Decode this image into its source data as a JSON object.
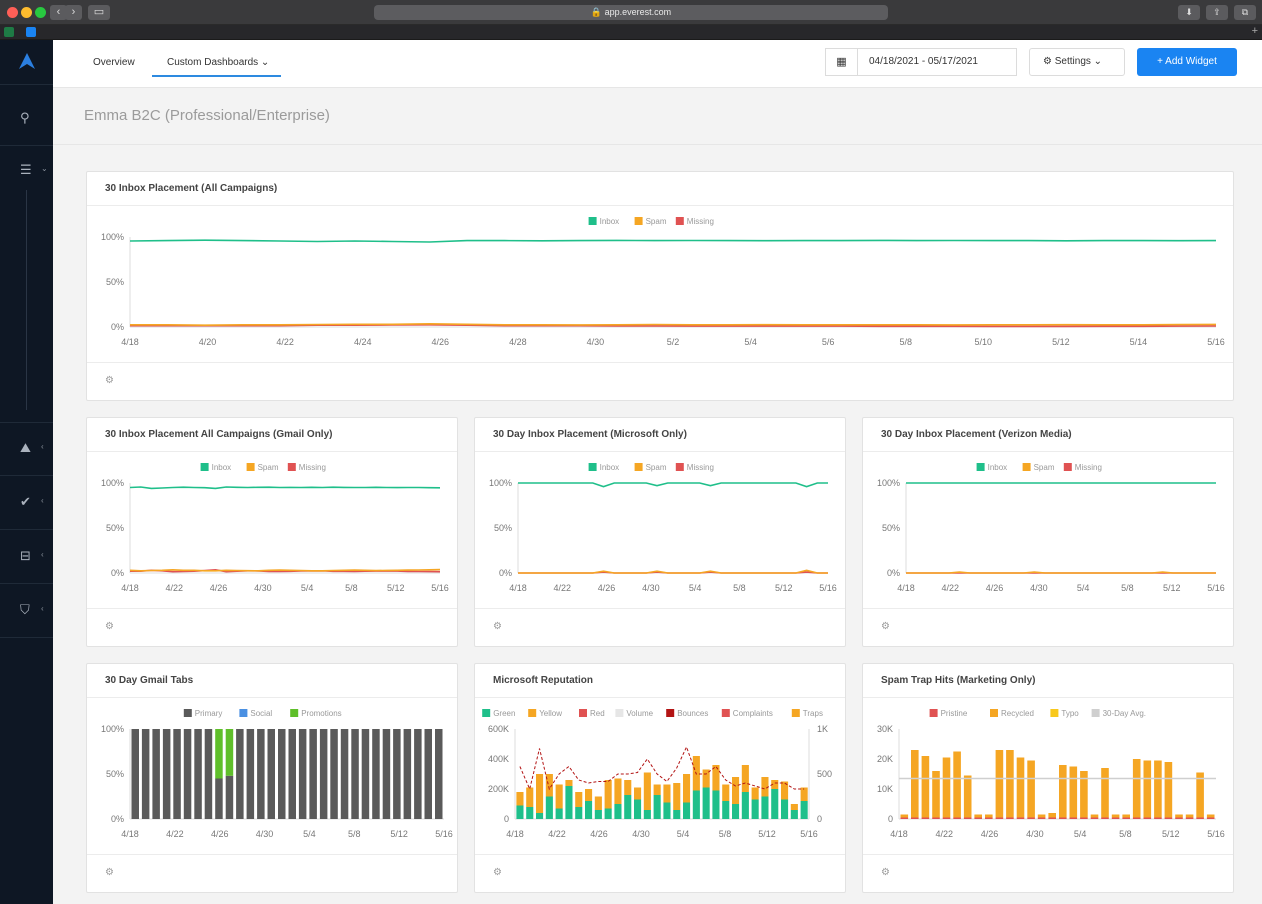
{
  "browser": {
    "url": "app.everest.com",
    "nav_back": "‹",
    "nav_forward": "›",
    "sidebar_toggle": "▭",
    "download": "⬇",
    "share": "⇪",
    "tabs_btn": "⧉",
    "new_tab": "+"
  },
  "sidebar": {
    "logo_icon": "logo-icon",
    "items": [
      {
        "icon": "key-icon",
        "glyph": "⚲"
      },
      {
        "icon": "menu-icon",
        "glyph": "☰",
        "chevron": "⌄"
      },
      {
        "icon": "mountain-icon",
        "glyph": "⛰",
        "chevron": "‹"
      },
      {
        "icon": "check-icon",
        "glyph": "✔",
        "chevron": "‹"
      },
      {
        "icon": "inbox-icon",
        "glyph": "⊟",
        "chevron": "‹"
      },
      {
        "icon": "shield-icon",
        "glyph": "⛉",
        "chevron": "‹"
      }
    ]
  },
  "header": {
    "tabs": [
      {
        "label": "Overview"
      },
      {
        "label": "Custom Dashboards ⌄"
      }
    ],
    "calendar_icon": "▦",
    "date_range": "04/18/2021 - 05/17/2021",
    "settings_label": "⚙  Settings ⌄",
    "add_widget_label": "+  Add Widget"
  },
  "page_title": "Emma B2C (Professional/Enterprise)",
  "colors": {
    "inbox": "#1fbf8a",
    "spam": "#f5a623",
    "missing": "#e05252",
    "primary": "#5a5a5a",
    "social": "#4a90e2",
    "promotions": "#5fbf2a",
    "green": "#1fbf8a",
    "yellow": "#f5a623",
    "red": "#e05252",
    "volume": "#e6e6e6",
    "bounces": "#b31414",
    "complaints": "#e05252",
    "traps": "#f5a623",
    "pristine": "#e05252",
    "recycled": "#f5a623",
    "typo": "#f8c81c",
    "avg": "#cfcfcf"
  },
  "gear_icon": "⚙",
  "widgets": [
    {
      "title": "30 Inbox Placement (All Campaigns)",
      "chart_data": {
        "type": "line",
        "legend": [
          "Inbox",
          "Spam",
          "Missing"
        ],
        "yticks": [
          "100%",
          "50%",
          "0%"
        ],
        "xticks": [
          "4/18",
          "4/20",
          "4/22",
          "4/24",
          "4/26",
          "4/28",
          "4/30",
          "5/2",
          "5/4",
          "5/6",
          "5/8",
          "5/10",
          "5/12",
          "5/14",
          "5/16"
        ],
        "ylim": [
          0,
          100
        ],
        "series": [
          {
            "name": "Inbox",
            "values": [
              95.5,
              96,
              96.5,
              96,
              95.5,
              95,
              95.5,
              95,
              94.5,
              96,
              96,
              95.8,
              96,
              96.2,
              96,
              96.1,
              96,
              95.9,
              96,
              96,
              96.2,
              96,
              96.1,
              96,
              96,
              95.8,
              96,
              96,
              95.9,
              96
            ]
          },
          {
            "name": "Spam",
            "values": [
              2.5,
              2.5,
              2,
              2.5,
              2.5,
              2.8,
              3,
              3,
              3.5,
              3,
              2.5,
              2.5,
              2.3,
              2.5,
              2.8,
              2.5,
              2.5,
              2.6,
              2.5,
              2.4,
              2.5,
              2.5,
              2.3,
              2.4,
              2.5,
              2.6,
              2.5,
              2.4,
              2.7,
              2.9
            ]
          },
          {
            "name": "Missing",
            "values": [
              1.5,
              1.5,
              1.5,
              1.5,
              1.5,
              2,
              2,
              2.2,
              2.5,
              2,
              1.5,
              1.5,
              1.4,
              1.2,
              1.2,
              1,
              1,
              1,
              1,
              1,
              0.8,
              0.8,
              0.8,
              0.7,
              0.7,
              0.7,
              0.8,
              0.8,
              1,
              1.2
            ]
          }
        ]
      }
    },
    {
      "title": "30 Inbox Placement All Campaigns (Gmail Only)",
      "chart_data": {
        "type": "line",
        "legend": [
          "Inbox",
          "Spam",
          "Missing"
        ],
        "yticks": [
          "100%",
          "50%",
          "0%"
        ],
        "xticks": [
          "4/18",
          "4/22",
          "4/26",
          "4/30",
          "5/4",
          "5/8",
          "5/12",
          "5/16"
        ],
        "ylim": [
          0,
          100
        ],
        "series": [
          {
            "name": "Inbox",
            "values": [
              95,
              95.5,
              94,
              94.5,
              95,
              95.3,
              95,
              94.8,
              94,
              95.5,
              95.2,
              95,
              95.2,
              95.3,
              95,
              95.1,
              95,
              95.2,
              95,
              95.3,
              95.1,
              95,
              95,
              95.2,
              95,
              94.9,
              95,
              95,
              94.8,
              94.7
            ]
          },
          {
            "name": "Spam",
            "values": [
              3,
              2.5,
              2.8,
              3,
              3.5,
              3,
              3,
              2.5,
              2.5,
              3,
              2.8,
              2.6,
              2.5,
              3,
              3.2,
              3,
              2.8,
              2.5,
              2.5,
              2.8,
              3,
              3.2,
              3,
              2.7,
              2.9,
              3,
              3.2,
              3.3,
              3.6,
              3.8
            ]
          },
          {
            "name": "Missing",
            "values": [
              2,
              2,
              3,
              2.5,
              1.5,
              1.7,
              2,
              2.7,
              3.5,
              1.5,
              2,
              2.4,
              2.3,
              1.7,
              1.8,
              1.9,
              2.2,
              2.3,
              2.5,
              1.9,
              1.9,
              1.8,
              2,
              2.1,
              2.1,
              2.1,
              1.8,
              1.7,
              1.6,
              1.5
            ]
          }
        ]
      }
    },
    {
      "title": "30 Day Inbox Placement (Microsoft Only)",
      "chart_data": {
        "type": "line",
        "legend": [
          "Inbox",
          "Spam",
          "Missing"
        ],
        "yticks": [
          "100%",
          "50%",
          "0%"
        ],
        "xticks": [
          "4/18",
          "4/22",
          "4/26",
          "4/30",
          "5/4",
          "5/8",
          "5/12",
          "5/16"
        ],
        "ylim": [
          0,
          100
        ],
        "series": [
          {
            "name": "Inbox",
            "values": [
              100,
              100,
              100,
              100,
              100,
              100,
              100,
              100,
              96,
              100,
              100,
              100,
              100,
              97,
              100,
              100,
              100,
              100,
              97,
              100,
              100,
              100,
              100,
              100,
              100,
              100,
              100,
              96,
              100,
              100
            ]
          },
          {
            "name": "Spam",
            "values": [
              0,
              0,
              0,
              0,
              0,
              0,
              0,
              0,
              2,
              0,
              0,
              0,
              0,
              2,
              0,
              0,
              0,
              0,
              2,
              0,
              0,
              0,
              0,
              0,
              0,
              0,
              0,
              3,
              0,
              0
            ]
          },
          {
            "name": "Missing",
            "values": [
              0,
              0,
              0,
              0,
              0,
              0,
              0,
              0,
              1,
              0,
              0,
              0,
              0,
              1,
              0,
              0,
              0,
              0,
              1,
              0,
              0,
              0,
              0,
              0,
              0,
              0,
              0,
              1,
              0,
              0
            ]
          }
        ]
      }
    },
    {
      "title": "30 Day Inbox Placement (Verizon Media)",
      "chart_data": {
        "type": "line",
        "legend": [
          "Inbox",
          "Spam",
          "Missing"
        ],
        "yticks": [
          "100%",
          "50%",
          "0%"
        ],
        "xticks": [
          "4/18",
          "4/22",
          "4/26",
          "4/30",
          "5/4",
          "5/8",
          "5/12",
          "5/16"
        ],
        "ylim": [
          0,
          100
        ],
        "series": [
          {
            "name": "Inbox",
            "values": [
              100,
              100,
              100,
              100,
              100,
              100,
              100,
              100,
              100,
              100,
              100,
              100,
              100,
              100,
              100,
              100,
              100,
              100,
              100,
              100,
              100,
              100,
              100,
              100,
              100,
              100,
              100,
              100,
              100,
              100
            ]
          },
          {
            "name": "Spam",
            "values": [
              0,
              0,
              0,
              0,
              0,
              1,
              0,
              0,
              0,
              0,
              0,
              0,
              1,
              0,
              0,
              0,
              0,
              0,
              0,
              0,
              0,
              0,
              0,
              0,
              1,
              0,
              0,
              0,
              0,
              0
            ]
          },
          {
            "name": "Missing",
            "values": [
              0,
              0,
              0,
              0,
              0,
              0,
              0,
              0,
              0,
              0,
              0,
              0,
              0,
              0,
              0,
              0,
              0,
              0,
              0,
              0,
              0,
              0,
              0,
              0,
              0,
              0,
              0,
              0,
              0,
              0
            ]
          }
        ]
      }
    },
    {
      "title": "30 Day Gmail Tabs",
      "chart_data": {
        "type": "bar",
        "stacked": true,
        "legend": [
          "Primary",
          "Social",
          "Promotions"
        ],
        "yticks": [
          "100%",
          "50%",
          "0%"
        ],
        "xticks": [
          "4/18",
          "4/22",
          "4/26",
          "4/30",
          "5/4",
          "5/8",
          "5/12",
          "5/16"
        ],
        "ylim": [
          0,
          100
        ],
        "series": [
          {
            "name": "Primary",
            "values": [
              100,
              100,
              100,
              100,
              100,
              100,
              100,
              100,
              45,
              48,
              100,
              100,
              100,
              100,
              100,
              100,
              100,
              100,
              100,
              100,
              100,
              100,
              100,
              100,
              100,
              100,
              100,
              100,
              100,
              100
            ]
          },
          {
            "name": "Promotions",
            "values": [
              0,
              0,
              0,
              0,
              0,
              0,
              0,
              0,
              55,
              52,
              0,
              0,
              0,
              0,
              0,
              0,
              0,
              0,
              0,
              0,
              0,
              0,
              0,
              0,
              0,
              0,
              0,
              0,
              0,
              0
            ]
          }
        ]
      }
    },
    {
      "title": "Microsoft Reputation",
      "chart_data": {
        "type": "bar",
        "stacked": true,
        "legend": [
          "Green",
          "Yellow",
          "Red",
          "Volume",
          "Bounces",
          "Complaints",
          "Traps"
        ],
        "yticks": [
          "600K",
          "400K",
          "200K",
          "0"
        ],
        "yticks_right": [
          "1K",
          "500",
          "0"
        ],
        "xticks": [
          "4/18",
          "4/22",
          "4/26",
          "4/30",
          "5/4",
          "5/8",
          "5/12",
          "5/16"
        ],
        "ylim": [
          0,
          600000
        ],
        "series": [
          {
            "name": "Green",
            "values": [
              90000,
              80000,
              40000,
              150000,
              70000,
              220000,
              80000,
              120000,
              60000,
              70000,
              100000,
              160000,
              130000,
              60000,
              160000,
              110000,
              60000,
              110000,
              190000,
              210000,
              190000,
              120000,
              100000,
              180000,
              130000,
              150000,
              200000,
              130000,
              60000,
              120000
            ]
          },
          {
            "name": "Yellow",
            "values": [
              90000,
              130000,
              260000,
              150000,
              160000,
              40000,
              100000,
              80000,
              90000,
              190000,
              170000,
              100000,
              80000,
              250000,
              70000,
              120000,
              180000,
              190000,
              230000,
              120000,
              170000,
              110000,
              180000,
              180000,
              80000,
              130000,
              60000,
              120000,
              40000,
              90000
            ]
          },
          {
            "name": "Bounces",
            "values": [
              0,
              0,
              0,
              0,
              0,
              0,
              0,
              0,
              0,
              0,
              0,
              0,
              0,
              0,
              0,
              0,
              0,
              0,
              0,
              0,
              0,
              0,
              0,
              0,
              0,
              0,
              0,
              0,
              0,
              0
            ]
          },
          {
            "name": "Traps",
            "values": [
              0,
              0,
              0,
              0,
              0,
              0,
              0,
              0,
              0,
              0,
              0,
              0,
              0,
              0,
              0,
              0,
              0,
              0,
              0,
              0,
              0,
              0,
              0,
              0,
              0,
              0,
              0,
              0,
              0,
              0
            ]
          }
        ],
        "volume_line": [
          350000,
          200000,
          470000,
          200000,
          300000,
          350000,
          260000,
          240000,
          250000,
          250000,
          300000,
          300000,
          310000,
          400000,
          300000,
          250000,
          340000,
          480000,
          300000,
          300000,
          350000,
          260000,
          220000,
          240000,
          220000,
          200000,
          240000,
          240000,
          200000,
          200000
        ]
      }
    },
    {
      "title": "Spam Trap Hits (Marketing Only)",
      "chart_data": {
        "type": "bar",
        "stacked": true,
        "legend": [
          "Pristine",
          "Recycled",
          "Typo",
          "30-Day Avg."
        ],
        "yticks": [
          "30K",
          "20K",
          "10K",
          "0"
        ],
        "xticks": [
          "4/18",
          "4/22",
          "4/26",
          "4/30",
          "5/4",
          "5/8",
          "5/12",
          "5/16"
        ],
        "ylim": [
          0,
          30000
        ],
        "series": [
          {
            "name": "Pristine",
            "values": [
              500,
              500,
              500,
              500,
              500,
              500,
              500,
              500,
              500,
              500,
              500,
              500,
              500,
              500,
              500,
              500,
              500,
              500,
              500,
              500,
              500,
              500,
              500,
              500,
              500,
              500,
              500,
              500,
              500,
              500
            ]
          },
          {
            "name": "Recycled",
            "values": [
              1000,
              22500,
              20500,
              15500,
              20000,
              22000,
              14000,
              1000,
              1000,
              22500,
              22500,
              20000,
              19000,
              1000,
              1500,
              17500,
              17000,
              15500,
              1000,
              16500,
              1000,
              1000,
              19500,
              19000,
              19000,
              18500,
              1000,
              1000,
              15000,
              1000
            ]
          }
        ],
        "avg": 13500
      }
    }
  ]
}
